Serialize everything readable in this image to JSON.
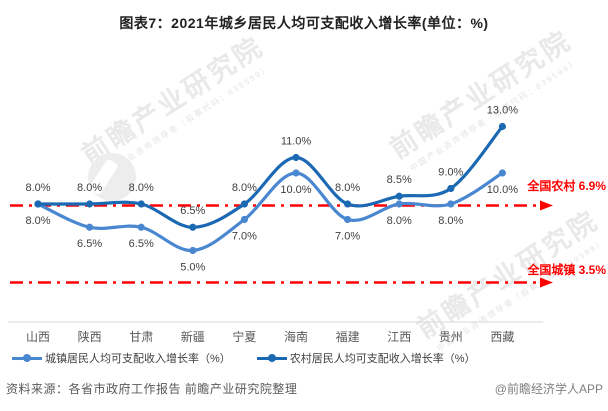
{
  "title": "图表7：2021年城乡居民人均可支配收入增长率(单位：%)",
  "watermark": {
    "main": "前瞻产业研究院",
    "sub": "中国产业咨询领导者（股票代码：839599）"
  },
  "chart_data": {
    "type": "line",
    "title": "图表7：2021年城乡居民人均可支配收入增长率(单位：%)",
    "unit": "%",
    "categories": [
      "山西",
      "陕西",
      "甘肃",
      "新疆",
      "宁夏",
      "海南",
      "福建",
      "江西",
      "贵州",
      "西藏"
    ],
    "series": [
      {
        "name": "城镇居民人均可支配收入增长率（%）",
        "color": "#4a87d1",
        "label_side": "below",
        "values": [
          8.0,
          6.5,
          6.5,
          5.0,
          7.0,
          10.0,
          7.0,
          8.0,
          8.0,
          10.0
        ],
        "labels": [
          "8.0%",
          "6.5%",
          "6.5%",
          "5.0%",
          "7.0%",
          "10.0%",
          "7.0%",
          "8.0%",
          "8.0%",
          "10.0%"
        ]
      },
      {
        "name": "农村居民人均可支配收入增长率（%）",
        "color": "#1b69b3",
        "label_side": "above",
        "values": [
          8.0,
          8.0,
          8.0,
          6.5,
          8.0,
          11.0,
          8.0,
          8.5,
          9.0,
          13.0
        ],
        "labels": [
          "8.0%",
          "8.0%",
          "8.0%",
          "6.5%",
          "8.0%",
          "11.0%",
          "8.0%",
          "8.5%",
          "9.0%",
          "13.0%"
        ]
      }
    ],
    "reference_lines": [
      {
        "label": "全国农村 6.9%",
        "value": 6.9,
        "color": "#ff0000",
        "style": "dash-dot-arrow"
      },
      {
        "label": "全国城镇 3.5%",
        "value": 3.5,
        "color": "#ff0000",
        "style": "dash-dot-arrow"
      }
    ],
    "grid": false,
    "legend_position": "bottom",
    "label_color": "#3f3f3f",
    "axis_label_color": "#595959"
  },
  "footer": {
    "source": "资料来源：各省市政府工作报告 前瞻产业研究院整理",
    "credit": "@前瞻经济学人APP"
  }
}
